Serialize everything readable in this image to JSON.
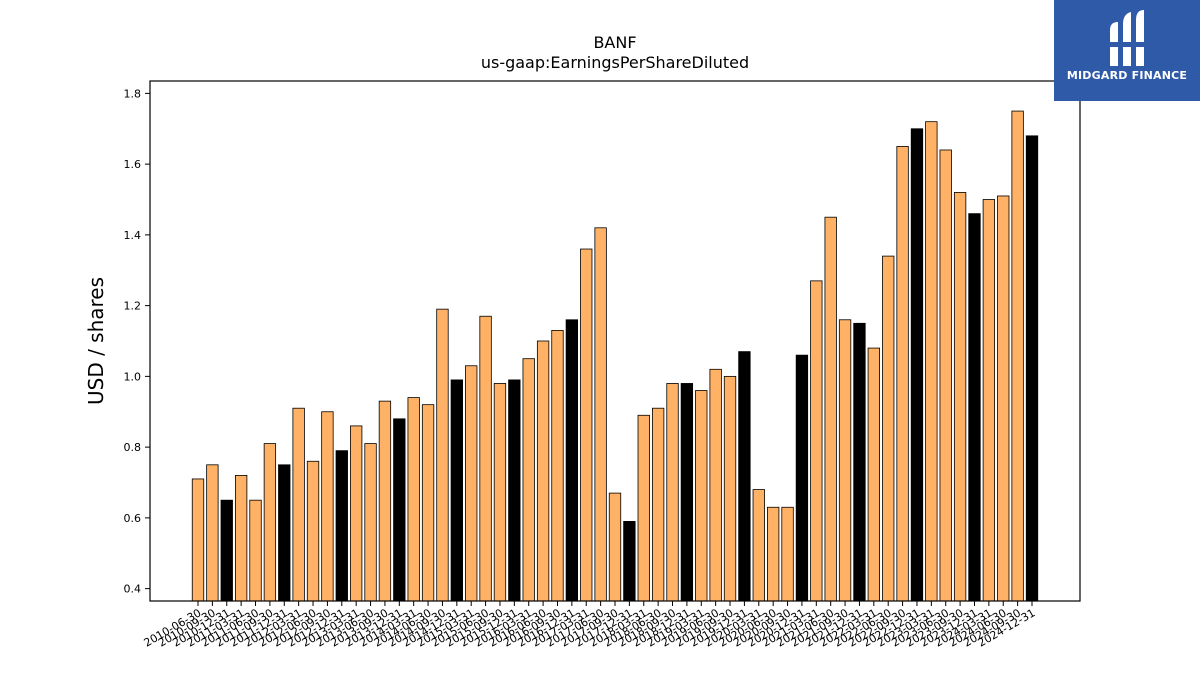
{
  "chart_data": {
    "type": "bar",
    "title": "BANF",
    "subtitle": "us-gaap:EarningsPerShareDiluted",
    "ylabel": "USD / shares",
    "ylim": [
      0.365,
      1.835
    ],
    "yticks": [
      "0.4",
      "0.6",
      "0.8",
      "1.0",
      "1.2",
      "1.4",
      "1.6",
      "1.8"
    ],
    "grid": false,
    "colors": {
      "quarter": "#ffb266",
      "year_end": "#000000",
      "edge": "#000000"
    },
    "categories": [
      "2010-06-30",
      "2010-09-30",
      "2010-12-31",
      "2011-03-31",
      "2011-06-30",
      "2011-09-30",
      "2011-12-31",
      "2012-03-31",
      "2012-06-30",
      "2012-09-30",
      "2012-12-31",
      "2013-03-31",
      "2013-06-30",
      "2013-09-30",
      "2013-12-31",
      "2014-03-31",
      "2014-06-30",
      "2014-09-30",
      "2014-12-31",
      "2015-03-31",
      "2015-06-30",
      "2015-09-30",
      "2015-12-31",
      "2016-03-31",
      "2016-06-30",
      "2016-09-30",
      "2016-12-31",
      "2017-03-31",
      "2017-06-30",
      "2017-09-30",
      "2017-12-31",
      "2018-03-31",
      "2018-06-30",
      "2018-09-30",
      "2018-12-31",
      "2019-03-31",
      "2019-06-30",
      "2019-09-30",
      "2019-12-31",
      "2020-03-31",
      "2020-06-30",
      "2020-09-30",
      "2020-12-31",
      "2021-03-31",
      "2021-06-30",
      "2021-09-30",
      "2021-12-31",
      "2022-03-31",
      "2022-06-30",
      "2022-09-30",
      "2022-12-31",
      "2023-03-31",
      "2023-06-30",
      "2023-09-30",
      "2023-12-31",
      "2024-03-31",
      "2024-06-30",
      "2024-09-30",
      "2024-12-31"
    ],
    "values": [
      0.71,
      0.75,
      0.65,
      0.72,
      0.65,
      0.81,
      0.75,
      0.91,
      0.76,
      0.9,
      0.79,
      0.86,
      0.81,
      0.93,
      0.88,
      0.94,
      0.92,
      1.19,
      0.99,
      1.03,
      1.17,
      0.98,
      0.99,
      1.05,
      1.1,
      1.13,
      1.16,
      1.36,
      1.42,
      0.67,
      0.59,
      0.89,
      0.91,
      0.98,
      0.98,
      0.96,
      1.02,
      1.0,
      1.07,
      0.68,
      0.63,
      0.63,
      1.06,
      1.27,
      1.45,
      1.16,
      1.15,
      1.08,
      1.34,
      1.65,
      1.7,
      1.72,
      1.64,
      1.52,
      1.46,
      1.5,
      1.51,
      1.75,
      1.68
    ],
    "year_end_flags": [
      0,
      0,
      1,
      0,
      0,
      0,
      1,
      0,
      0,
      0,
      1,
      0,
      0,
      0,
      1,
      0,
      0,
      0,
      1,
      0,
      0,
      0,
      1,
      0,
      0,
      0,
      1,
      0,
      0,
      0,
      1,
      0,
      0,
      0,
      1,
      0,
      0,
      0,
      1,
      0,
      0,
      0,
      1,
      0,
      0,
      0,
      1,
      0,
      0,
      0,
      1,
      0,
      0,
      0,
      1,
      0,
      0,
      0,
      1
    ]
  },
  "logo": {
    "text": "MIDGARD FINANCE"
  }
}
